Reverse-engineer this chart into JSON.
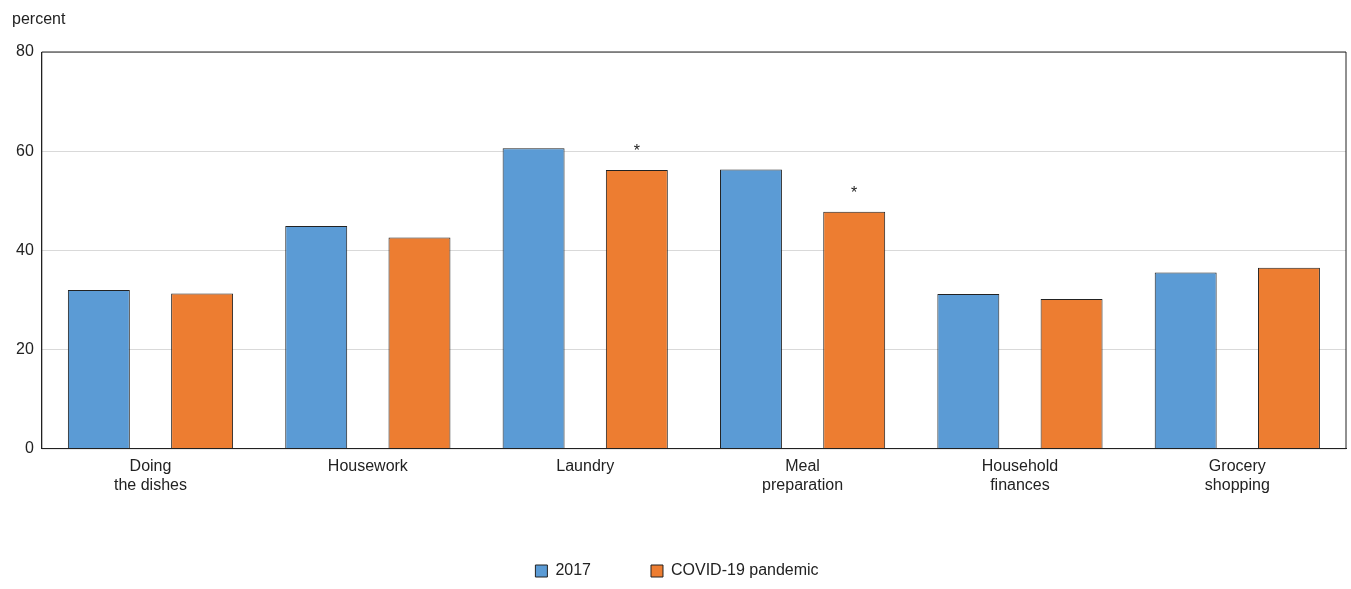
{
  "chart_data": {
    "type": "bar",
    "ylabel": "percent",
    "categories": [
      "Doing the dishes",
      "Housework",
      "Laundry",
      "Meal preparation",
      "Household finances",
      "Grocery shopping"
    ],
    "series": [
      {
        "name": "2017",
        "color": "#5b9bd5",
        "values": [
          32.0,
          44.9,
          60.6,
          56.3,
          31.2,
          35.5
        ]
      },
      {
        "name": "COVID-19 pandemic",
        "color": "#ed7d31",
        "values": [
          31.3,
          42.6,
          56.2,
          47.8,
          30.2,
          36.5
        ],
        "value_labels": [
          null,
          null,
          "*",
          "*",
          null,
          null
        ]
      }
    ],
    "ylim": [
      0,
      80
    ],
    "yticks": [
      0,
      20,
      40,
      60,
      80
    ],
    "grid": "y",
    "legend": "bottom"
  }
}
